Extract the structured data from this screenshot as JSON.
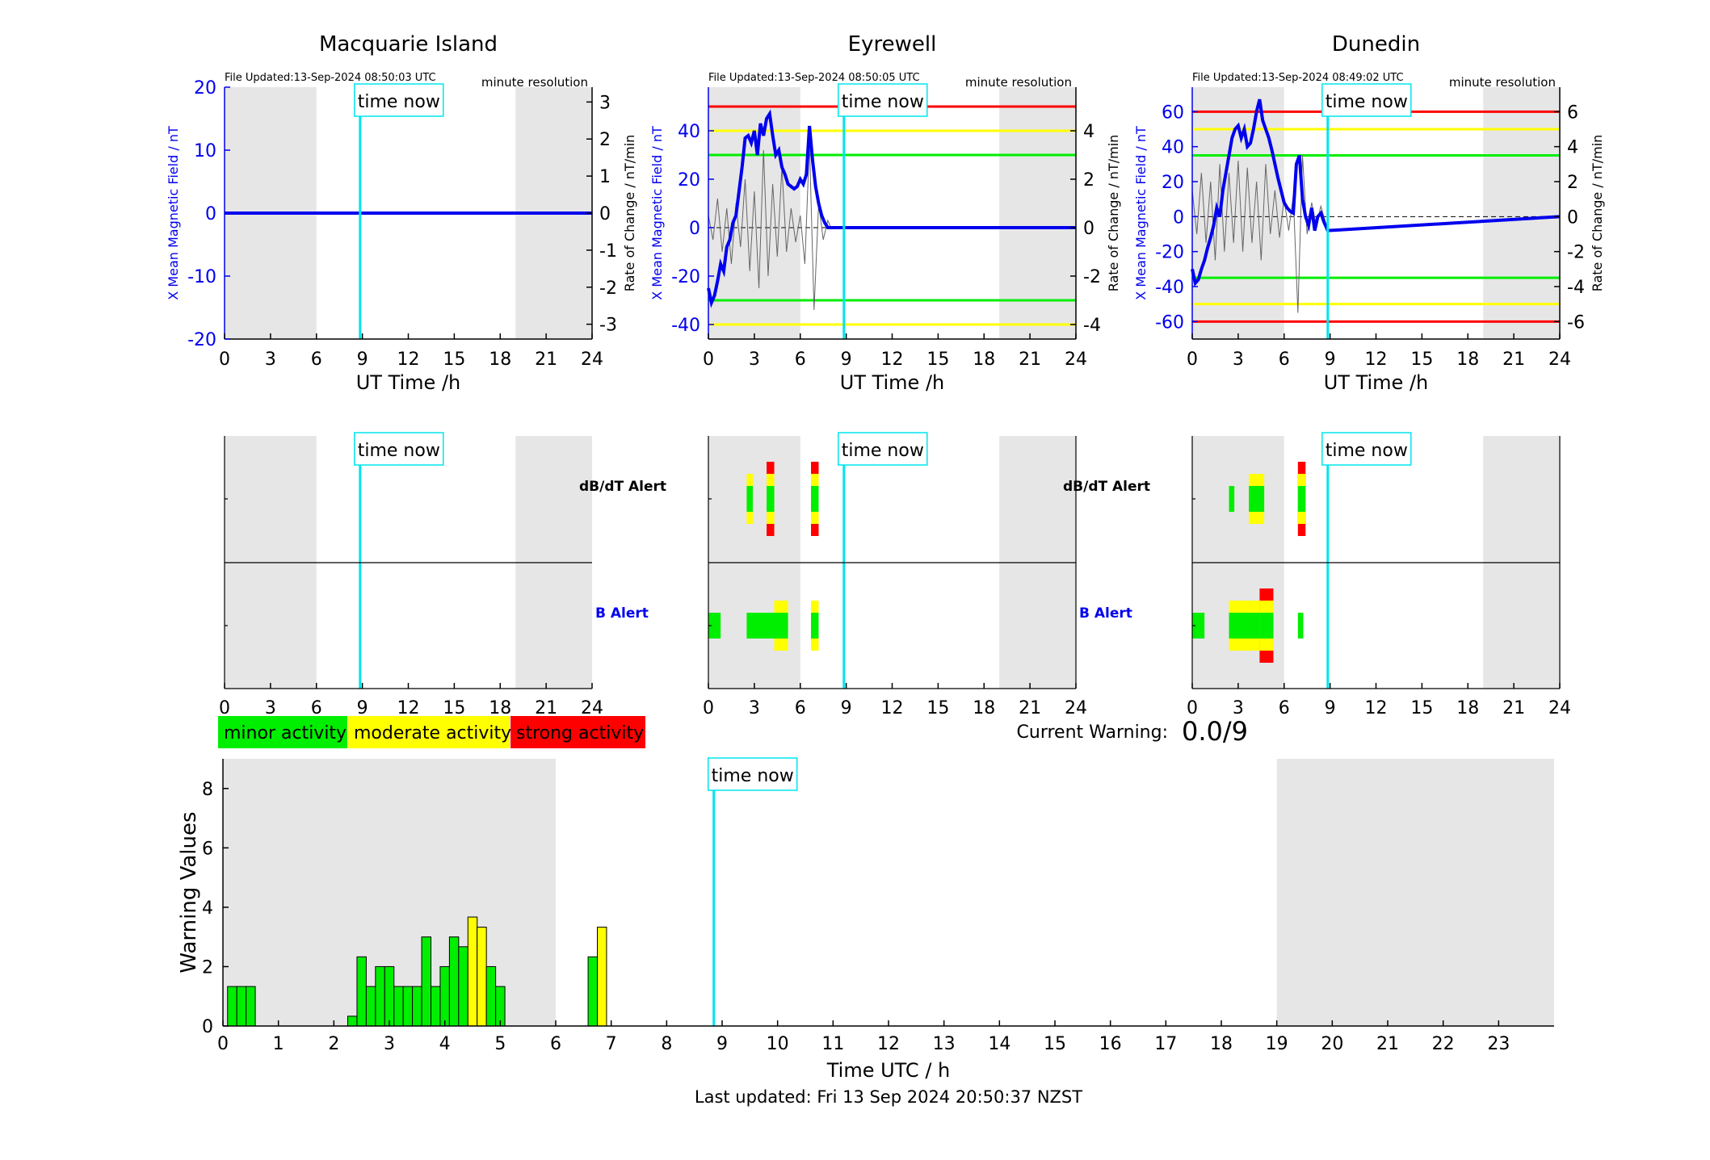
{
  "colors": {
    "shade": "#e6e6e6",
    "minor": "#00ee00",
    "moderate": "#ffff00",
    "strong": "#ff0000",
    "field_line": "#0000ee",
    "time_now": "#00e5ee",
    "axis_blue": "#0000ee"
  },
  "time_now_label": "time now",
  "time_now_h": 8.85,
  "labels": {
    "xlabel_top": "UT Time /h",
    "file_prefix": "File Updated:",
    "resolution": "minute resolution",
    "left_ylabel": "X Mean Magnetic Field / nT",
    "right_ylabel": "Rate of Change / nT/min",
    "dbdt_alert": "dB/dT Alert",
    "b_alert": "B Alert",
    "current_warning_label": "Current Warning:",
    "current_warning_value": "0.0/9",
    "bottom_xlabel": "Time UTC / h",
    "bottom_ylabel": "Warning Values",
    "last_updated": "Last updated: Fri 13 Sep 2024 20:50:37 NZST"
  },
  "legend": [
    {
      "label": "minor activity",
      "color": "#00ee00"
    },
    {
      "label": "moderate activity",
      "color": "#ffff00"
    },
    {
      "label": "strong activity",
      "color": "#ff0000"
    }
  ],
  "chart_data": [
    {
      "type": "line",
      "station": "Macquarie Island",
      "file_updated": "13-Sep-2024 08:50:03 UTC",
      "xlim": [
        0,
        24
      ],
      "xticks": [
        0,
        3,
        6,
        9,
        12,
        15,
        18,
        21,
        24
      ],
      "ylim": [
        -20,
        20
      ],
      "yticks": [
        -20,
        -10,
        0,
        10,
        20
      ],
      "y2lim": [
        -3.4,
        3.4
      ],
      "y2ticks": [
        -3,
        -2,
        -1,
        0,
        1,
        2,
        3
      ],
      "shaded_hours": [
        [
          0,
          6
        ],
        [
          19,
          24
        ]
      ],
      "thresholds": [],
      "field": {
        "x": [
          0,
          24
        ],
        "y": [
          0,
          0
        ]
      },
      "rate": {
        "x": [],
        "y": []
      },
      "dbdt_alert": [],
      "b_alert": []
    },
    {
      "type": "line",
      "station": "Eyrewell",
      "file_updated": "13-Sep-2024 08:50:05 UTC",
      "xlim": [
        0,
        24
      ],
      "xticks": [
        0,
        3,
        6,
        9,
        12,
        15,
        18,
        21,
        24
      ],
      "ylim": [
        -46,
        58
      ],
      "yticks": [
        -40,
        -20,
        0,
        20,
        40
      ],
      "y2lim": [
        -4.6,
        5.8
      ],
      "y2ticks": [
        -4,
        -2,
        0,
        2,
        4
      ],
      "shaded_hours": [
        [
          0,
          6
        ],
        [
          19,
          24
        ]
      ],
      "thresholds": [
        {
          "y": 50,
          "color": "#ff0000"
        },
        {
          "y": 40,
          "color": "#ffff00"
        },
        {
          "y": 30,
          "color": "#00ee00"
        },
        {
          "y": -30,
          "color": "#00ee00"
        },
        {
          "y": -40,
          "color": "#ffff00"
        }
      ],
      "field": {
        "x": [
          0,
          0.2,
          0.4,
          0.6,
          0.8,
          1.0,
          1.2,
          1.4,
          1.6,
          1.8,
          2.0,
          2.2,
          2.4,
          2.6,
          2.8,
          3.0,
          3.2,
          3.4,
          3.6,
          3.8,
          4.0,
          4.2,
          4.4,
          4.6,
          4.8,
          5.0,
          5.2,
          5.4,
          5.6,
          5.8,
          6.0,
          6.2,
          6.4,
          6.6,
          6.8,
          7.0,
          7.2,
          7.4,
          7.6,
          7.8,
          8.0,
          8.85,
          24
        ],
        "y": [
          -25,
          -31,
          -28,
          -22,
          -15,
          -18,
          -8,
          -5,
          2,
          5,
          15,
          25,
          37,
          38,
          35,
          40,
          30,
          43,
          38,
          45,
          47,
          38,
          30,
          32,
          25,
          22,
          18,
          17,
          16,
          17,
          20,
          18,
          22,
          42,
          28,
          17,
          10,
          5,
          2,
          0,
          0,
          0,
          0
        ]
      },
      "rate": {
        "x": [
          0,
          0.3,
          0.6,
          0.9,
          1.2,
          1.5,
          1.8,
          2.1,
          2.4,
          2.7,
          3.0,
          3.3,
          3.6,
          3.9,
          4.2,
          4.5,
          4.8,
          5.1,
          5.4,
          5.7,
          6.0,
          6.3,
          6.6,
          6.9,
          7.2,
          7.5,
          7.8,
          8.0
        ],
        "y": [
          0.5,
          -0.5,
          1.2,
          -1.0,
          0.8,
          -1.5,
          1.0,
          -0.8,
          2.0,
          -1.8,
          1.5,
          -2.5,
          3.2,
          -2.0,
          1.8,
          -1.2,
          2.5,
          -1.0,
          0.8,
          -0.6,
          0.5,
          -1.5,
          3.5,
          -3.4,
          1.0,
          -0.5,
          0.3,
          0.0
        ]
      },
      "dbdt_alert": [
        {
          "x": 2.5,
          "w": 0.4,
          "levels": [
            "minor",
            "moderate"
          ]
        },
        {
          "x": 3.8,
          "w": 0.5,
          "levels": [
            "minor",
            "moderate",
            "strong"
          ]
        },
        {
          "x": 6.7,
          "w": 0.5,
          "levels": [
            "minor",
            "moderate",
            "strong"
          ]
        }
      ],
      "b_alert": [
        {
          "x": 0.0,
          "w": 0.8,
          "levels": [
            "minor"
          ]
        },
        {
          "x": 2.5,
          "w": 1.8,
          "levels": [
            "minor"
          ]
        },
        {
          "x": 4.3,
          "w": 0.9,
          "levels": [
            "minor",
            "moderate"
          ]
        },
        {
          "x": 6.7,
          "w": 0.5,
          "levels": [
            "minor",
            "moderate"
          ]
        }
      ]
    },
    {
      "type": "line",
      "station": "Dunedin",
      "file_updated": "13-Sep-2024 08:49:02 UTC",
      "xlim": [
        0,
        24
      ],
      "xticks": [
        0,
        3,
        6,
        9,
        12,
        15,
        18,
        21,
        24
      ],
      "ylim": [
        -70,
        74
      ],
      "yticks": [
        -60,
        -40,
        -20,
        0,
        20,
        40,
        60
      ],
      "y2lim": [
        -7.0,
        7.4
      ],
      "y2ticks": [
        -6,
        -4,
        -2,
        0,
        2,
        4,
        6
      ],
      "shaded_hours": [
        [
          0,
          6
        ],
        [
          19,
          24
        ]
      ],
      "thresholds": [
        {
          "y": 60,
          "color": "#ff0000"
        },
        {
          "y": 50,
          "color": "#ffff00"
        },
        {
          "y": 35,
          "color": "#00ee00"
        },
        {
          "y": -35,
          "color": "#00ee00"
        },
        {
          "y": -50,
          "color": "#ffff00"
        },
        {
          "y": -60,
          "color": "#ff0000"
        }
      ],
      "field": {
        "x": [
          0,
          0.2,
          0.4,
          0.6,
          0.8,
          1.0,
          1.2,
          1.4,
          1.6,
          1.8,
          2.0,
          2.2,
          2.4,
          2.6,
          2.8,
          3.0,
          3.2,
          3.4,
          3.6,
          3.8,
          4.0,
          4.2,
          4.4,
          4.6,
          4.8,
          5.0,
          5.2,
          5.4,
          5.6,
          5.8,
          6.0,
          6.2,
          6.4,
          6.6,
          6.8,
          7.0,
          7.2,
          7.4,
          7.6,
          7.8,
          8.0,
          8.2,
          8.4,
          8.6,
          8.85,
          24
        ],
        "y": [
          -30,
          -38,
          -36,
          -30,
          -25,
          -18,
          -12,
          -5,
          5,
          0,
          15,
          25,
          35,
          45,
          50,
          52,
          45,
          50,
          40,
          42,
          50,
          60,
          67,
          55,
          50,
          45,
          38,
          30,
          22,
          15,
          8,
          5,
          3,
          2,
          30,
          35,
          10,
          0,
          -5,
          5,
          -8,
          0,
          2,
          -3,
          -8,
          0
        ]
      },
      "rate": {
        "x": [
          0,
          0.3,
          0.6,
          0.9,
          1.2,
          1.5,
          1.8,
          2.1,
          2.4,
          2.7,
          3.0,
          3.3,
          3.6,
          3.9,
          4.2,
          4.5,
          4.8,
          5.1,
          5.4,
          5.7,
          6.0,
          6.3,
          6.6,
          6.9,
          7.2,
          7.5,
          7.8,
          8.1,
          8.4,
          8.7
        ],
        "y": [
          1.5,
          -1.0,
          2.5,
          -1.5,
          2.0,
          -2.5,
          3.0,
          -2.0,
          2.5,
          -1.5,
          3.2,
          -2.0,
          2.8,
          -1.5,
          2.0,
          -2.5,
          3.0,
          -1.0,
          1.5,
          -1.2,
          1.0,
          -0.8,
          1.2,
          -5.5,
          3.5,
          -1.0,
          0.8,
          -0.5,
          0.6,
          -0.3
        ]
      },
      "dbdt_alert": [
        {
          "x": 2.4,
          "w": 0.35,
          "levels": [
            "minor"
          ]
        },
        {
          "x": 3.7,
          "w": 1.0,
          "levels": [
            "minor",
            "moderate"
          ]
        },
        {
          "x": 6.9,
          "w": 0.5,
          "levels": [
            "minor",
            "moderate",
            "strong"
          ]
        }
      ],
      "b_alert": [
        {
          "x": 0.0,
          "w": 0.8,
          "levels": [
            "minor"
          ]
        },
        {
          "x": 2.4,
          "w": 1.4,
          "levels": [
            "minor",
            "moderate"
          ]
        },
        {
          "x": 3.8,
          "w": 0.6,
          "levels": [
            "minor",
            "moderate"
          ]
        },
        {
          "x": 4.4,
          "w": 0.9,
          "levels": [
            "minor",
            "moderate",
            "strong"
          ]
        },
        {
          "x": 6.9,
          "w": 0.35,
          "levels": [
            "minor"
          ]
        }
      ]
    },
    {
      "type": "bar",
      "name": "warning-values",
      "xlim": [
        0,
        24
      ],
      "xticks": [
        0,
        1,
        2,
        3,
        4,
        5,
        6,
        7,
        8,
        9,
        10,
        11,
        12,
        13,
        14,
        15,
        16,
        17,
        18,
        19,
        20,
        21,
        22,
        23
      ],
      "ylim": [
        0,
        9
      ],
      "yticks": [
        0,
        2,
        4,
        6,
        8
      ],
      "shaded_hours": [
        [
          0,
          6
        ],
        [
          19,
          24
        ]
      ],
      "bar_width_h": 0.1667,
      "bars": [
        {
          "x": 0.1667,
          "v": 1.33,
          "c": "minor"
        },
        {
          "x": 0.3333,
          "v": 1.33,
          "c": "minor"
        },
        {
          "x": 0.5,
          "v": 1.33,
          "c": "minor"
        },
        {
          "x": 2.3333,
          "v": 0.33,
          "c": "minor"
        },
        {
          "x": 2.5,
          "v": 2.33,
          "c": "minor"
        },
        {
          "x": 2.6667,
          "v": 1.33,
          "c": "minor"
        },
        {
          "x": 2.8333,
          "v": 2.0,
          "c": "minor"
        },
        {
          "x": 3.0,
          "v": 2.0,
          "c": "minor"
        },
        {
          "x": 3.1667,
          "v": 1.33,
          "c": "minor"
        },
        {
          "x": 3.3333,
          "v": 1.33,
          "c": "minor"
        },
        {
          "x": 3.5,
          "v": 1.33,
          "c": "minor"
        },
        {
          "x": 3.6667,
          "v": 3.0,
          "c": "minor"
        },
        {
          "x": 3.8333,
          "v": 1.33,
          "c": "minor"
        },
        {
          "x": 4.0,
          "v": 2.0,
          "c": "minor"
        },
        {
          "x": 4.1667,
          "v": 3.0,
          "c": "minor"
        },
        {
          "x": 4.3333,
          "v": 2.67,
          "c": "minor"
        },
        {
          "x": 4.5,
          "v": 3.67,
          "c": "moderate"
        },
        {
          "x": 4.6667,
          "v": 3.33,
          "c": "moderate"
        },
        {
          "x": 4.8333,
          "v": 2.0,
          "c": "minor"
        },
        {
          "x": 5.0,
          "v": 1.33,
          "c": "minor"
        },
        {
          "x": 6.6667,
          "v": 2.33,
          "c": "minor"
        },
        {
          "x": 6.8333,
          "v": 3.33,
          "c": "moderate"
        }
      ]
    }
  ]
}
